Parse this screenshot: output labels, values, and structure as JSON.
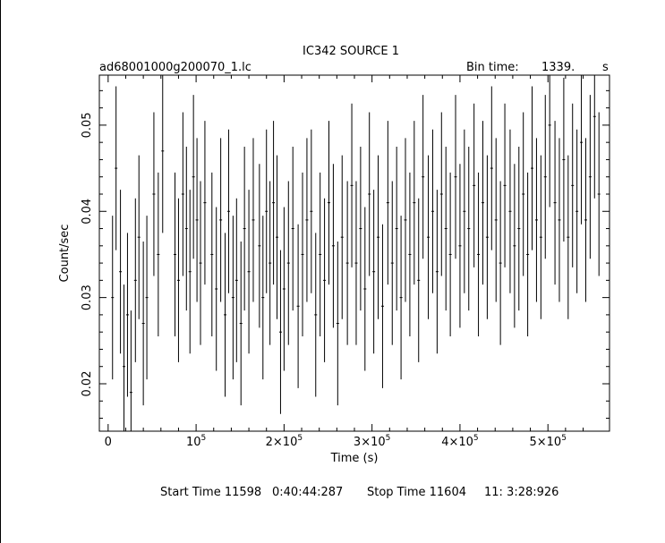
{
  "header": {
    "title": "IC342 SOURCE 1",
    "file_name": "ad68001000g200070_1.lc",
    "bin_time_label": "Bin time:",
    "bin_time_value": "1339.",
    "bin_time_unit": "s"
  },
  "footer": {
    "start_label": "Start Time 11598",
    "start_value": "0:40:44:287",
    "stop_label": "Stop Time 11604",
    "stop_value": "11: 3:28:926"
  },
  "chart_data": {
    "type": "scatter",
    "title": "IC342 SOURCE 1",
    "xlabel": "Time (s)",
    "ylabel": "Count/sec",
    "xlim": [
      -10000,
      570000
    ],
    "ylim": [
      0.0145,
      0.0558
    ],
    "x_ticks": [
      {
        "value": 0,
        "label": "0"
      },
      {
        "value": 100000,
        "label": "10^5"
      },
      {
        "value": 200000,
        "label": "2×10^5"
      },
      {
        "value": 300000,
        "label": "3×10^5"
      },
      {
        "value": 400000,
        "label": "4×10^5"
      },
      {
        "value": 500000,
        "label": "5×10^5"
      }
    ],
    "y_ticks": [
      {
        "value": 0.02,
        "label": "0.02"
      },
      {
        "value": 0.03,
        "label": "0.03"
      },
      {
        "value": 0.04,
        "label": "0.04"
      },
      {
        "value": 0.05,
        "label": "0.05"
      }
    ],
    "grid": false,
    "error_bars": true,
    "series": [
      {
        "x": [
          5000,
          9000,
          14000,
          18000,
          22000,
          26000,
          31000,
          35000,
          40000,
          44000,
          52000,
          57000,
          62000,
          76000,
          80000,
          85000,
          89000,
          93000,
          97000,
          101000,
          105000,
          110000,
          118000,
          123000,
          128000,
          133000,
          137000,
          142000,
          146000,
          151000,
          155000,
          160000,
          165000,
          172000,
          176000,
          180000,
          184000,
          188000,
          192000,
          196000,
          200000,
          205000,
          210000,
          216000,
          221000,
          226000,
          231000,
          236000,
          241000,
          246000,
          251000,
          256000,
          261000,
          266000,
          272000,
          277000,
          282000,
          287000,
          292000,
          297000,
          302000,
          307000,
          312000,
          318000,
          323000,
          328000,
          333000,
          338000,
          343000,
          348000,
          353000,
          358000,
          364000,
          369000,
          374000,
          379000,
          384000,
          389000,
          395000,
          400000,
          405000,
          410000,
          416000,
          421000,
          426000,
          431000,
          436000,
          441000,
          446000,
          451000,
          457000,
          462000,
          467000,
          472000,
          477000,
          482000,
          487000,
          492000,
          497000,
          502000,
          508000,
          513000,
          518000,
          523000,
          528000,
          533000,
          538000,
          543000,
          548000,
          553000,
          558000
        ],
        "y": [
          0.03,
          0.045,
          0.033,
          0.022,
          0.028,
          0.019,
          0.032,
          0.037,
          0.027,
          0.03,
          0.042,
          0.035,
          0.047,
          0.035,
          0.032,
          0.042,
          0.038,
          0.033,
          0.044,
          0.039,
          0.034,
          0.041,
          0.035,
          0.031,
          0.039,
          0.028,
          0.04,
          0.03,
          0.032,
          0.027,
          0.038,
          0.033,
          0.039,
          0.036,
          0.03,
          0.04,
          0.034,
          0.041,
          0.037,
          0.026,
          0.031,
          0.034,
          0.038,
          0.029,
          0.035,
          0.039,
          0.04,
          0.028,
          0.035,
          0.032,
          0.041,
          0.036,
          0.027,
          0.037,
          0.034,
          0.043,
          0.034,
          0.038,
          0.031,
          0.042,
          0.033,
          0.037,
          0.029,
          0.041,
          0.034,
          0.038,
          0.03,
          0.039,
          0.035,
          0.041,
          0.032,
          0.044,
          0.037,
          0.04,
          0.033,
          0.042,
          0.038,
          0.035,
          0.044,
          0.036,
          0.04,
          0.038,
          0.043,
          0.035,
          0.041,
          0.037,
          0.045,
          0.039,
          0.034,
          0.043,
          0.04,
          0.036,
          0.038,
          0.042,
          0.035,
          0.045,
          0.039,
          0.037,
          0.044,
          0.05,
          0.041,
          0.039,
          0.046,
          0.037,
          0.043,
          0.04,
          0.048,
          0.039,
          0.044,
          0.051,
          0.042
        ],
        "yerr": 0.0095
      }
    ]
  }
}
